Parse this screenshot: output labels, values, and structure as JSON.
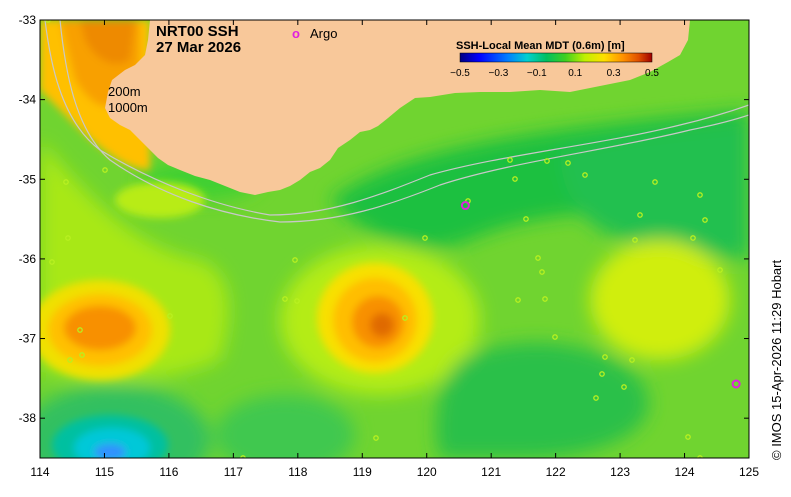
{
  "map": {
    "title_line1": "NRT00 SSH",
    "title_line2": "27 Mar 2026",
    "argo_marker": "o",
    "argo_label": "Argo",
    "contour_200": "200m",
    "contour_1000": "1000m",
    "credit": "© IMOS 15-Apr-2026 11:29 Hobart",
    "lon_range": [
      114,
      125
    ],
    "lat_range": [
      -38.5,
      -33
    ],
    "lon_ticks": [
      "114",
      "115",
      "116",
      "117",
      "118",
      "119",
      "120",
      "121",
      "122",
      "123",
      "124",
      "125"
    ],
    "lat_ticks": [
      "-33",
      "-34",
      "-35",
      "-36",
      "-37",
      "-38"
    ],
    "argo_floats": [
      {
        "lon": 120.6,
        "lat": -35.33
      },
      {
        "lon": 124.8,
        "lat": -37.57
      }
    ]
  },
  "colorbar": {
    "label": "SSH-Local Mean MDT (0.6m) [m]",
    "ticks": [
      "−0.5",
      "−0.3",
      "−0.1",
      "0.1",
      "0.3",
      "0.5"
    ],
    "stops": [
      "#000080",
      "#0000ff",
      "#0080ff",
      "#00d0d0",
      "#00c060",
      "#40d020",
      "#c0f000",
      "#ffe000",
      "#ff9000",
      "#e05000",
      "#a00000"
    ]
  },
  "colors": {
    "land": "#f8c89a",
    "ocean_base": "#70d430",
    "argo": "#e020e0"
  }
}
